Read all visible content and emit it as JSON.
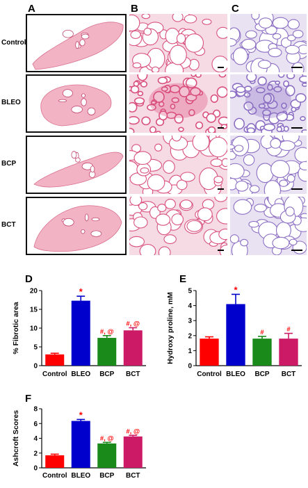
{
  "figure": {
    "panel_labels": {
      "A": "A",
      "B": "B",
      "C": "C",
      "D": "D",
      "E": "E",
      "F": "F"
    },
    "row_labels": [
      "Control",
      "BLEO",
      "BCP",
      "BCT"
    ],
    "image_panels": {
      "A": {
        "description_icon": "lung-section-thumbnail-icon",
        "stain_color": "#e58aa6"
      },
      "B": {
        "description_icon": "he-stain-micrograph-icon",
        "stain_color": "#d9517e"
      },
      "C": {
        "description_icon": "trichrome-stain-micrograph-icon",
        "stain_color": "#8c6fc4"
      }
    }
  },
  "chart_data": [
    {
      "panel": "D",
      "type": "bar",
      "categories": [
        "Control",
        "BLEO",
        "BCP",
        "BCT"
      ],
      "values": [
        3.0,
        17.3,
        7.4,
        9.4
      ],
      "errors": [
        0.3,
        1.2,
        0.6,
        0.7
      ],
      "colors": [
        "#ff0000",
        "#0000cc",
        "#1a8a1a",
        "#cc1a66"
      ],
      "annotations": [
        "",
        "*",
        "#, @",
        "#, @"
      ],
      "annotation_colors": [
        "",
        "#ff0000",
        "#ff0000",
        "#ff0000"
      ],
      "ylabel": "% Fibrotic area",
      "ylim": [
        0,
        20
      ],
      "yticks": [
        0,
        5,
        10,
        15,
        20
      ]
    },
    {
      "panel": "E",
      "type": "bar",
      "categories": [
        "Control",
        "BLEO",
        "BCP",
        "BCT"
      ],
      "values": [
        1.8,
        4.1,
        1.8,
        1.8
      ],
      "errors": [
        0.12,
        0.65,
        0.15,
        0.35
      ],
      "colors": [
        "#ff0000",
        "#0000cc",
        "#1a8a1a",
        "#cc1a66"
      ],
      "annotations": [
        "",
        "*",
        "#",
        "#"
      ],
      "annotation_colors": [
        "",
        "#ff0000",
        "#ff0000",
        "#ff0000"
      ],
      "ylabel": "Hydroxy proline, mM",
      "ylim": [
        0,
        5
      ],
      "yticks": [
        0,
        1,
        2,
        3,
        4,
        5
      ]
    },
    {
      "panel": "F",
      "type": "bar",
      "categories": [
        "Control",
        "BLEO",
        "BCP",
        "BCT"
      ],
      "values": [
        1.7,
        6.35,
        3.3,
        4.25
      ],
      "errors": [
        0.15,
        0.2,
        0.15,
        0.15
      ],
      "colors": [
        "#ff0000",
        "#0000cc",
        "#1a8a1a",
        "#cc1a66"
      ],
      "annotations": [
        "",
        "*",
        "#, @",
        "#, @"
      ],
      "annotation_colors": [
        "",
        "#ff0000",
        "#ff0000",
        "#ff0000"
      ],
      "ylabel": "Ashcroft Scores",
      "ylim": [
        0,
        8
      ],
      "yticks": [
        0,
        2,
        4,
        6,
        8
      ]
    }
  ]
}
